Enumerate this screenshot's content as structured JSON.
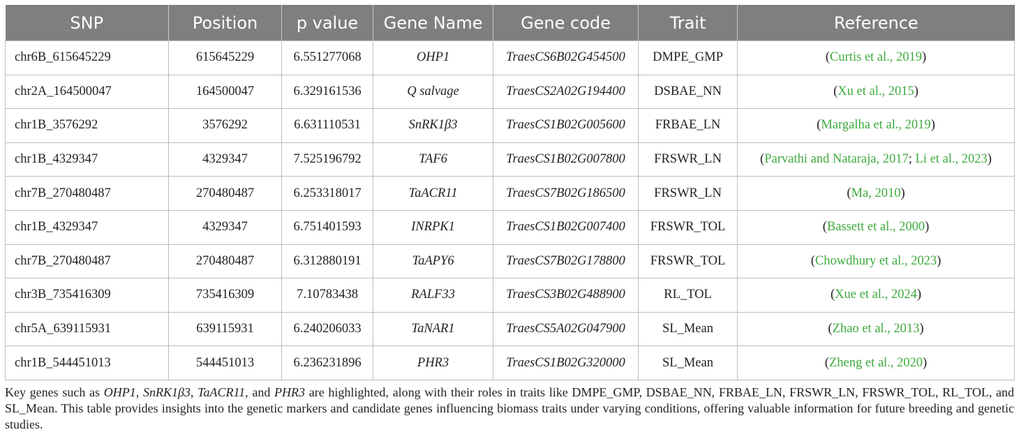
{
  "table": {
    "headers": [
      "SNP",
      "Position",
      "p value",
      "Gene Name",
      "Gene code",
      "Trait",
      "Reference"
    ],
    "rows": [
      {
        "snp": "chr6B_615645229",
        "position": "615645229",
        "p": "6.551277068",
        "gene": "OHP1",
        "code": "TraesCS6B02G454500",
        "trait": "DMPE_GMP",
        "refs": [
          "Curtis et al., 2019"
        ]
      },
      {
        "snp": "chr2A_164500047",
        "position": "164500047",
        "p": "6.329161536",
        "gene": "Q salvage",
        "code": "TraesCS2A02G194400",
        "trait": "DSBAE_NN",
        "refs": [
          "Xu et al., 2015"
        ]
      },
      {
        "snp": "chr1B_3576292",
        "position": "3576292",
        "p": "6.631110531",
        "gene": "SnRK1β3",
        "code": "TraesCS1B02G005600",
        "trait": "FRBAE_LN",
        "refs": [
          "Margalha et al., 2019"
        ]
      },
      {
        "snp": "chr1B_4329347",
        "position": "4329347",
        "p": "7.525196792",
        "gene": "TAF6",
        "code": "TraesCS1B02G007800",
        "trait": "FRSWR_LN",
        "refs": [
          "Parvathi and Nataraja, 2017",
          "Li et al., 2023"
        ]
      },
      {
        "snp": "chr7B_270480487",
        "position": "270480487",
        "p": "6.253318017",
        "gene": "TaACR11",
        "code": "TraesCS7B02G186500",
        "trait": "FRSWR_LN",
        "refs": [
          "Ma, 2010"
        ]
      },
      {
        "snp": "chr1B_4329347",
        "position": "4329347",
        "p": "6.751401593",
        "gene": "INRPK1",
        "code": "TraesCS1B02G007400",
        "trait": "FRSWR_TOL",
        "refs": [
          "Bassett et al., 2000"
        ]
      },
      {
        "snp": "chr7B_270480487",
        "position": "270480487",
        "p": "6.312880191",
        "gene": "TaAPY6",
        "code": "TraesCS7B02G178800",
        "trait": "FRSWR_TOL",
        "refs": [
          "Chowdhury et al., 2023"
        ]
      },
      {
        "snp": "chr3B_735416309",
        "position": "735416309",
        "p": "7.10783438",
        "gene": "RALF33",
        "code": "TraesCS3B02G488900",
        "trait": "RL_TOL",
        "refs": [
          "Xue et al., 2024"
        ]
      },
      {
        "snp": "chr5A_639115931",
        "position": "639115931",
        "p": "6.240206033",
        "gene": "TaNAR1",
        "code": "TraesCS5A02G047900",
        "trait": "SL_Mean",
        "refs": [
          "Zhao et al., 2013"
        ]
      },
      {
        "snp": "chr1B_544451013",
        "position": "544451013",
        "p": "6.236231896",
        "gene": "PHR3",
        "code": "TraesCS1B02G320000",
        "trait": "SL_Mean",
        "refs": [
          "Zheng et al., 2020"
        ]
      }
    ]
  },
  "caption": {
    "lead": "Key genes such as ",
    "g1": "OHP1",
    "sep1": ", ",
    "g2": "SnRK1β3",
    "sep2": ", ",
    "g3": "TaACR11",
    "sep3": ", and ",
    "g4": "PHR3",
    "rest": " are highlighted, along with their roles in traits like DMPE_GMP, DSBAE_NN, FRBAE_LN, FRSWR_LN, FRSWR_TOL, RL_TOL, and SL_Mean. This table provides insights into the genetic markers and candidate genes influencing biomass traits under varying conditions, offering valuable information for future breeding and genetic studies."
  },
  "colors": {
    "header_bg": "#7f7f7f",
    "citation": "#3faa3f",
    "border": "#bdbdbd"
  }
}
